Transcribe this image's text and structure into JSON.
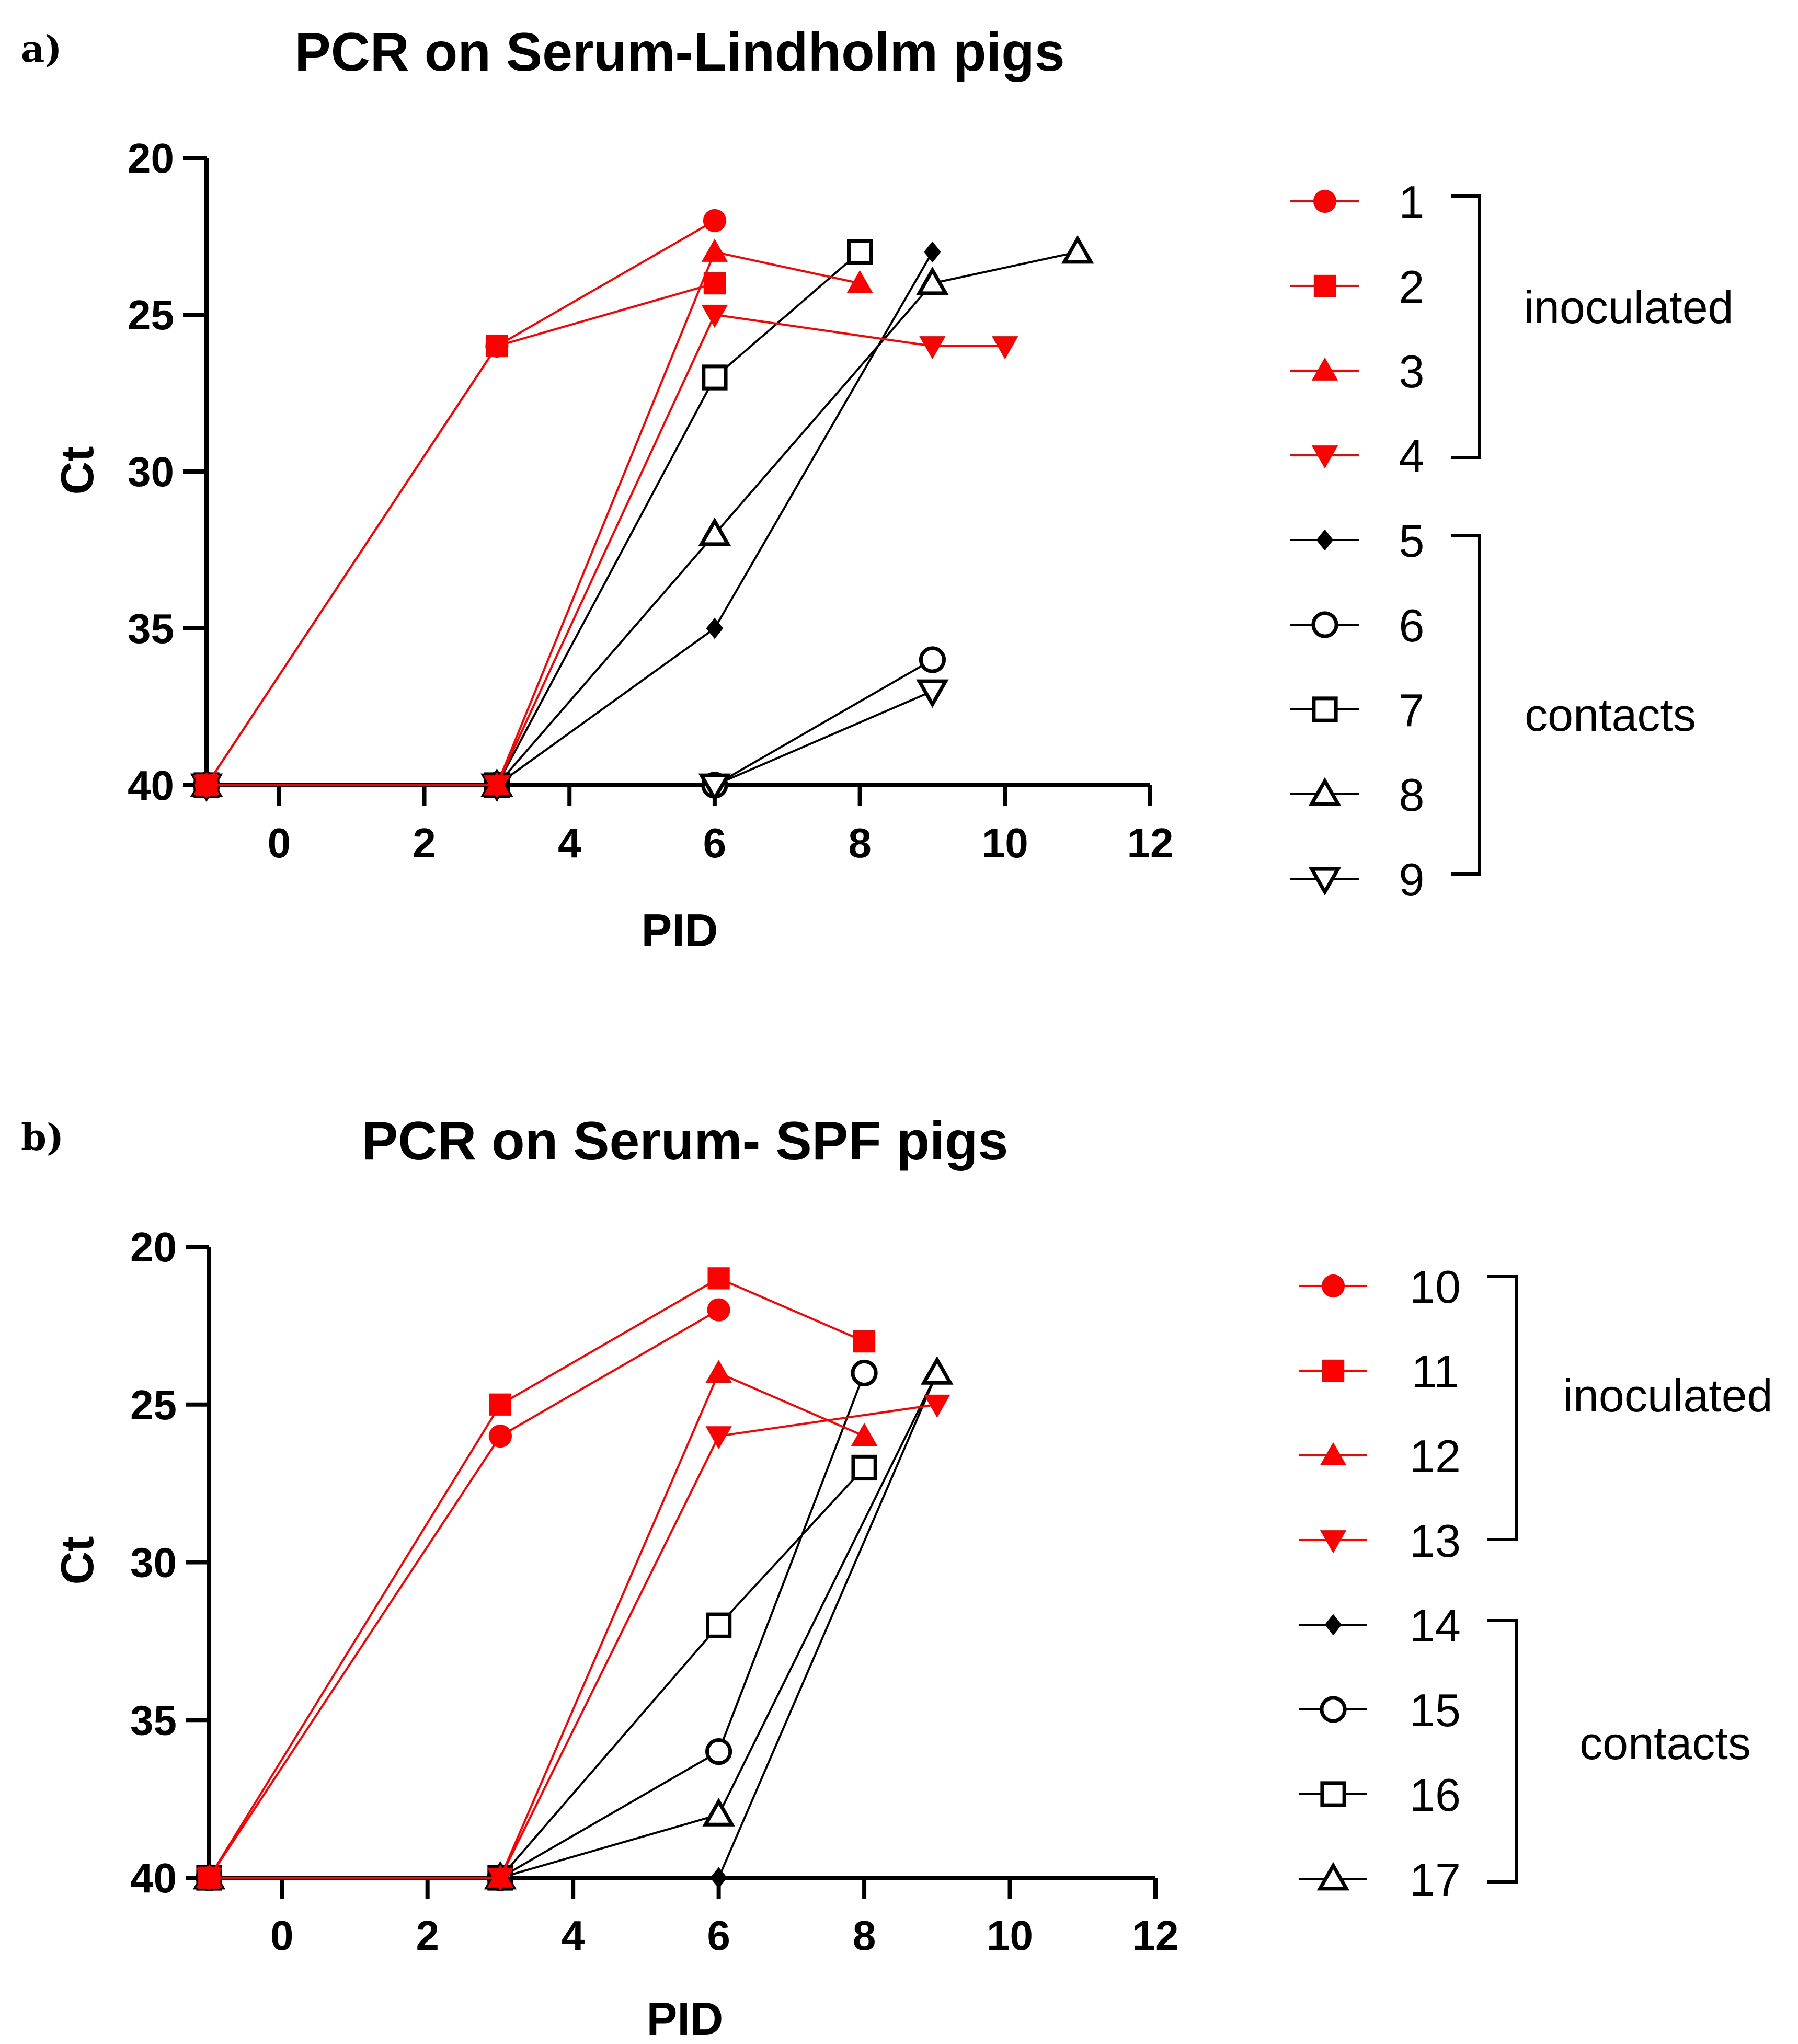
{
  "chart_data": [
    {
      "type": "line",
      "panel_label": "a)",
      "title": "PCR on Serum-Lindholm pigs",
      "xlabel": "PID",
      "ylabel": "Ct",
      "xlim": [
        -1,
        12
      ],
      "ylim": [
        20,
        40
      ],
      "y_inverted": true,
      "xticks": [
        0,
        2,
        4,
        6,
        8,
        10,
        12
      ],
      "yticks": [
        20,
        25,
        30,
        35,
        40
      ],
      "series": [
        {
          "name": "1",
          "group": "inoculated",
          "color": "#ff0000",
          "marker": "circle-filled",
          "x": [
            -1,
            3,
            6
          ],
          "y": [
            40,
            26,
            22
          ]
        },
        {
          "name": "2",
          "group": "inoculated",
          "color": "#ff0000",
          "marker": "square-filled",
          "x": [
            -1,
            3,
            6
          ],
          "y": [
            40,
            26,
            24
          ]
        },
        {
          "name": "3",
          "group": "inoculated",
          "color": "#ff0000",
          "marker": "triangle-up-filled",
          "x": [
            -1,
            3,
            6,
            8
          ],
          "y": [
            40,
            40,
            23,
            24
          ]
        },
        {
          "name": "4",
          "group": "inoculated",
          "color": "#ff0000",
          "marker": "triangle-down-filled",
          "x": [
            -1,
            3,
            6,
            9,
            10
          ],
          "y": [
            40,
            40,
            25,
            26,
            26
          ]
        },
        {
          "name": "5",
          "group": "contacts",
          "color": "#000000",
          "marker": "diamond-filled",
          "x": [
            -1,
            3,
            6,
            9
          ],
          "y": [
            40,
            40,
            35,
            23
          ]
        },
        {
          "name": "6",
          "group": "contacts",
          "color": "#000000",
          "marker": "circle-open",
          "x": [
            -1,
            3,
            6,
            9
          ],
          "y": [
            40,
            40,
            40,
            36
          ]
        },
        {
          "name": "7",
          "group": "contacts",
          "color": "#000000",
          "marker": "square-open",
          "x": [
            -1,
            3,
            6,
            8
          ],
          "y": [
            40,
            40,
            27,
            23
          ]
        },
        {
          "name": "8",
          "group": "contacts",
          "color": "#000000",
          "marker": "triangle-up-open",
          "x": [
            -1,
            3,
            6,
            9,
            11
          ],
          "y": [
            40,
            40,
            32,
            24,
            23
          ]
        },
        {
          "name": "9",
          "group": "contacts",
          "color": "#000000",
          "marker": "triangle-down-open",
          "x": [
            -1,
            3,
            6,
            9
          ],
          "y": [
            40,
            40,
            40,
            37
          ]
        }
      ],
      "groups": [
        {
          "label": "inoculated",
          "members": [
            "1",
            "2",
            "3",
            "4"
          ]
        },
        {
          "label": "contacts",
          "members": [
            "5",
            "6",
            "7",
            "8",
            "9"
          ]
        }
      ]
    },
    {
      "type": "line",
      "panel_label": "b)",
      "title": "PCR on Serum- SPF pigs",
      "xlabel": "PID",
      "ylabel": "Ct",
      "xlim": [
        -1,
        12
      ],
      "ylim": [
        20,
        40
      ],
      "y_inverted": true,
      "xticks": [
        0,
        2,
        4,
        6,
        8,
        10,
        12
      ],
      "yticks": [
        20,
        25,
        30,
        35,
        40
      ],
      "series": [
        {
          "name": "10",
          "group": "inoculated",
          "color": "#ff0000",
          "marker": "circle-filled",
          "x": [
            -1,
            3,
            6
          ],
          "y": [
            40,
            26,
            22
          ]
        },
        {
          "name": "11",
          "group": "inoculated",
          "color": "#ff0000",
          "marker": "square-filled",
          "x": [
            -1,
            3,
            6,
            8
          ],
          "y": [
            40,
            25,
            21,
            23
          ]
        },
        {
          "name": "12",
          "group": "inoculated",
          "color": "#ff0000",
          "marker": "triangle-up-filled",
          "x": [
            -1,
            3,
            6,
            8
          ],
          "y": [
            40,
            40,
            24,
            26
          ]
        },
        {
          "name": "13",
          "group": "inoculated",
          "color": "#ff0000",
          "marker": "triangle-down-filled",
          "x": [
            -1,
            3,
            6,
            9
          ],
          "y": [
            40,
            40,
            26,
            25
          ]
        },
        {
          "name": "14",
          "group": "contacts",
          "color": "#000000",
          "marker": "diamond-filled",
          "x": [
            -1,
            3,
            6,
            9
          ],
          "y": [
            40,
            40,
            40,
            24
          ]
        },
        {
          "name": "15",
          "group": "contacts",
          "color": "#000000",
          "marker": "circle-open",
          "x": [
            -1,
            3,
            6,
            8
          ],
          "y": [
            40,
            40,
            36,
            24
          ]
        },
        {
          "name": "16",
          "group": "contacts",
          "color": "#000000",
          "marker": "square-open",
          "x": [
            -1,
            3,
            6,
            8
          ],
          "y": [
            40,
            40,
            32,
            27
          ]
        },
        {
          "name": "17",
          "group": "contacts",
          "color": "#000000",
          "marker": "triangle-up-open",
          "x": [
            -1,
            3,
            6,
            9
          ],
          "y": [
            40,
            40,
            38,
            24
          ]
        }
      ],
      "groups": [
        {
          "label": "inoculated",
          "members": [
            "10",
            "11",
            "12",
            "13"
          ]
        },
        {
          "label": "contacts",
          "members": [
            "14",
            "15",
            "16",
            "17"
          ]
        }
      ]
    }
  ]
}
